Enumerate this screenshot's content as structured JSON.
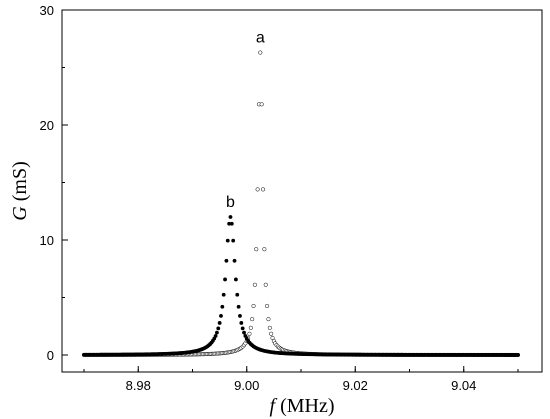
{
  "chart_data": {
    "type": "scatter",
    "xlabel_symbol": "f",
    "xlabel_unit": " (MHz)",
    "ylabel_symbol": "G",
    "ylabel_unit": " (mS)",
    "xlim": [
      8.97,
      9.05
    ],
    "ylim": [
      0,
      30
    ],
    "x_ticks": [
      8.98,
      9.0,
      9.02,
      9.04
    ],
    "x_tick_labels": [
      "8.98",
      "9.00",
      "9.02",
      "9.04"
    ],
    "y_ticks": [
      0,
      10,
      20,
      30
    ],
    "y_tick_labels": [
      "0",
      "10",
      "20",
      "30"
    ],
    "grid": false,
    "series": [
      {
        "name": "a",
        "marker": "open-circle",
        "model": "lorentzian",
        "peak_frequency_mhz": 9.0025,
        "peak_conductance_ms": 26.3,
        "half_width_mhz": 0.00055,
        "x_start_mhz": 8.97,
        "x_end_mhz": 9.05,
        "point_spacing_mhz": 0.00025
      },
      {
        "name": "b",
        "marker": "filled-circle",
        "model": "lorentzian",
        "peak_frequency_mhz": 8.997,
        "peak_conductance_ms": 12.0,
        "half_width_mhz": 0.0011,
        "x_start_mhz": 8.97,
        "x_end_mhz": 9.05,
        "point_spacing_mhz": 0.00025
      }
    ]
  }
}
